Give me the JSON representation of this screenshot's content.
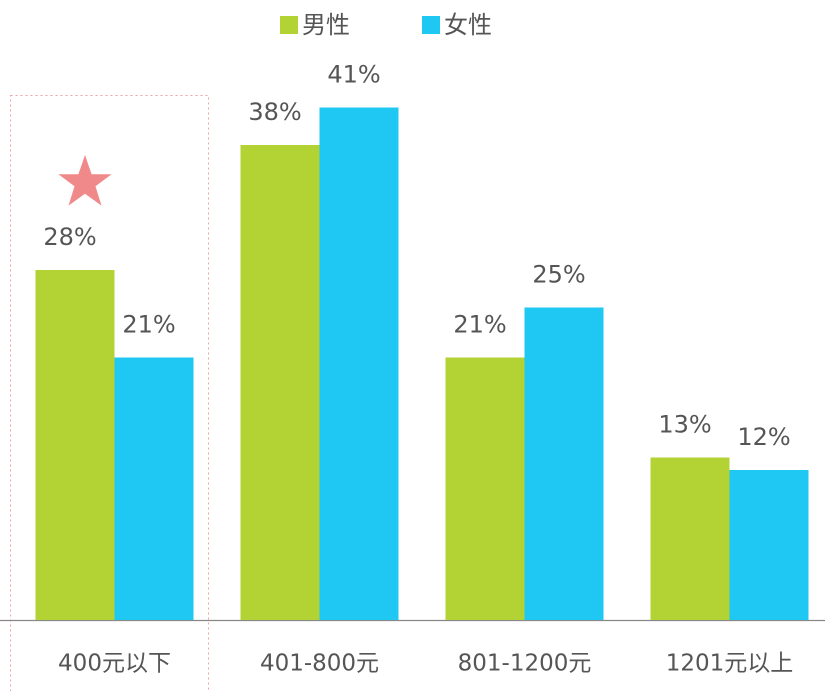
{
  "chart_data": {
    "type": "bar",
    "categories": [
      "400元以下",
      "401-800元",
      "801-1200元",
      "1201元以上"
    ],
    "series": [
      {
        "name": "男性",
        "color": "#b3d234",
        "values": [
          28,
          38,
          21,
          13
        ],
        "value_labels": [
          "28%",
          "38%",
          "21%",
          "13%"
        ]
      },
      {
        "name": "女性",
        "color": "#1fc8f2",
        "values": [
          21,
          41,
          25,
          12
        ],
        "value_labels": [
          "21%",
          "41%",
          "25%",
          "12%"
        ]
      }
    ],
    "legend": "top"
  }
}
